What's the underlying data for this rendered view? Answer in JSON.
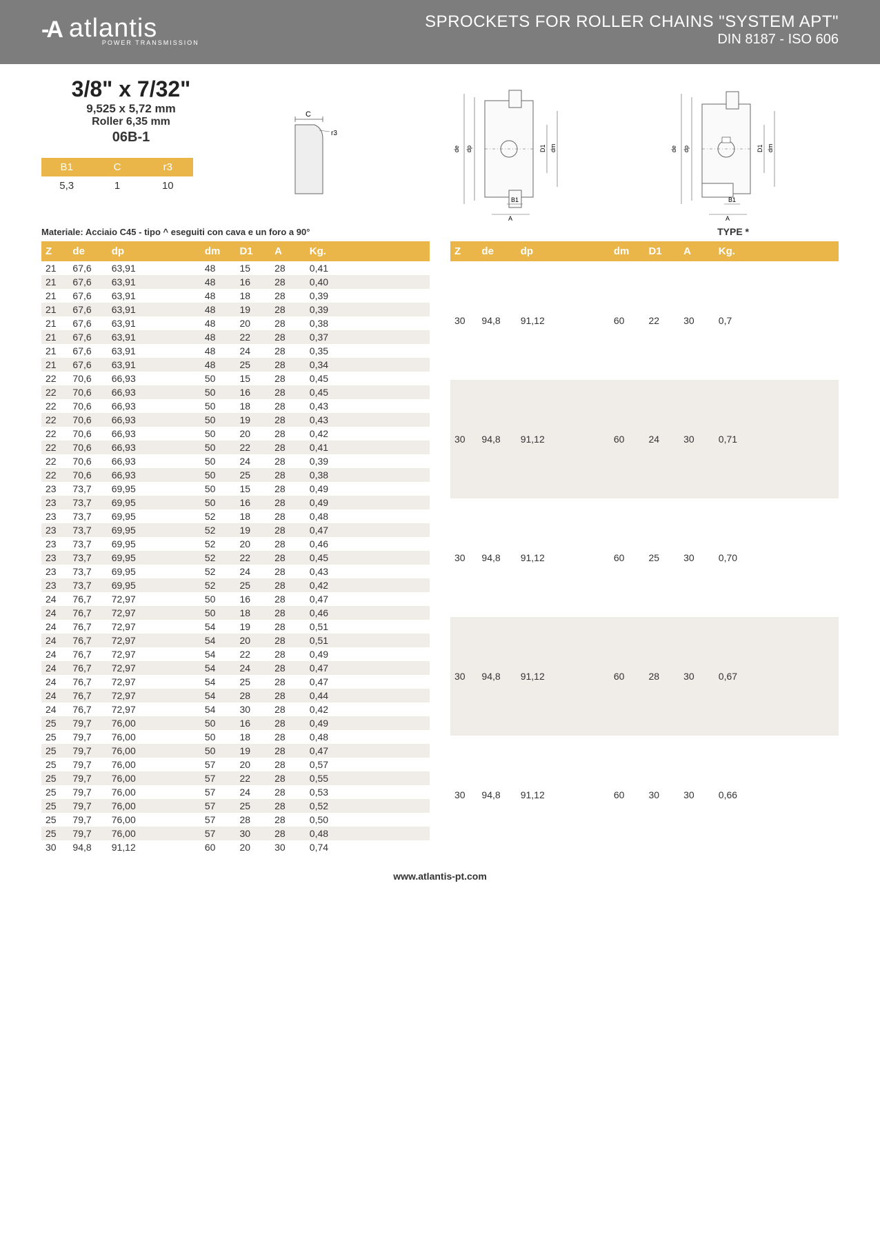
{
  "header": {
    "logo_text": "atlantis",
    "logo_sub": "POWER TRANSMISSION",
    "title": "SPROCKETS FOR ROLLER CHAINS \"SYSTEM APT\"",
    "subtitle": "DIN 8187 - ISO 606"
  },
  "spec": {
    "headline": "3/8\" x 7/32\"",
    "line1": "9,525 x 5,72 mm",
    "line2": "Roller 6,35 mm",
    "code": "06B-1"
  },
  "small_table": {
    "headers": [
      "B1",
      "C",
      "r3"
    ],
    "values": [
      "5,3",
      "1",
      "10"
    ]
  },
  "material_note": "Materiale: Acciaio C45 - tipo ^ eseguiti con cava e un foro a 90°",
  "type_label": "TYPE *",
  "table_columns": [
    "Z",
    "de",
    "dp",
    "dm",
    "D1",
    "A",
    "Kg."
  ],
  "left_rows": [
    [
      "21",
      "67,6",
      "63,91",
      "48",
      "15",
      "28",
      "0,41"
    ],
    [
      "21",
      "67,6",
      "63,91",
      "48",
      "16",
      "28",
      "0,40"
    ],
    [
      "21",
      "67,6",
      "63,91",
      "48",
      "18",
      "28",
      "0,39"
    ],
    [
      "21",
      "67,6",
      "63,91",
      "48",
      "19",
      "28",
      "0,39"
    ],
    [
      "21",
      "67,6",
      "63,91",
      "48",
      "20",
      "28",
      "0,38"
    ],
    [
      "21",
      "67,6",
      "63,91",
      "48",
      "22",
      "28",
      "0,37"
    ],
    [
      "21",
      "67,6",
      "63,91",
      "48",
      "24",
      "28",
      "0,35"
    ],
    [
      "21",
      "67,6",
      "63,91",
      "48",
      "25",
      "28",
      "0,34"
    ],
    [
      "22",
      "70,6",
      "66,93",
      "50",
      "15",
      "28",
      "0,45"
    ],
    [
      "22",
      "70,6",
      "66,93",
      "50",
      "16",
      "28",
      "0,45"
    ],
    [
      "22",
      "70,6",
      "66,93",
      "50",
      "18",
      "28",
      "0,43"
    ],
    [
      "22",
      "70,6",
      "66,93",
      "50",
      "19",
      "28",
      "0,43"
    ],
    [
      "22",
      "70,6",
      "66,93",
      "50",
      "20",
      "28",
      "0,42"
    ],
    [
      "22",
      "70,6",
      "66,93",
      "50",
      "22",
      "28",
      "0,41"
    ],
    [
      "22",
      "70,6",
      "66,93",
      "50",
      "24",
      "28",
      "0,39"
    ],
    [
      "22",
      "70,6",
      "66,93",
      "50",
      "25",
      "28",
      "0,38"
    ],
    [
      "23",
      "73,7",
      "69,95",
      "50",
      "15",
      "28",
      "0,49"
    ],
    [
      "23",
      "73,7",
      "69,95",
      "50",
      "16",
      "28",
      "0,49"
    ],
    [
      "23",
      "73,7",
      "69,95",
      "52",
      "18",
      "28",
      "0,48"
    ],
    [
      "23",
      "73,7",
      "69,95",
      "52",
      "19",
      "28",
      "0,47"
    ],
    [
      "23",
      "73,7",
      "69,95",
      "52",
      "20",
      "28",
      "0,46"
    ],
    [
      "23",
      "73,7",
      "69,95",
      "52",
      "22",
      "28",
      "0,45"
    ],
    [
      "23",
      "73,7",
      "69,95",
      "52",
      "24",
      "28",
      "0,43"
    ],
    [
      "23",
      "73,7",
      "69,95",
      "52",
      "25",
      "28",
      "0,42"
    ],
    [
      "24",
      "76,7",
      "72,97",
      "50",
      "16",
      "28",
      "0,47"
    ],
    [
      "24",
      "76,7",
      "72,97",
      "50",
      "18",
      "28",
      "0,46"
    ],
    [
      "24",
      "76,7",
      "72,97",
      "54",
      "19",
      "28",
      "0,51"
    ],
    [
      "24",
      "76,7",
      "72,97",
      "54",
      "20",
      "28",
      "0,51"
    ],
    [
      "24",
      "76,7",
      "72,97",
      "54",
      "22",
      "28",
      "0,49"
    ],
    [
      "24",
      "76,7",
      "72,97",
      "54",
      "24",
      "28",
      "0,47"
    ],
    [
      "24",
      "76,7",
      "72,97",
      "54",
      "25",
      "28",
      "0,47"
    ],
    [
      "24",
      "76,7",
      "72,97",
      "54",
      "28",
      "28",
      "0,44"
    ],
    [
      "24",
      "76,7",
      "72,97",
      "54",
      "30",
      "28",
      "0,42"
    ],
    [
      "25",
      "79,7",
      "76,00",
      "50",
      "16",
      "28",
      "0,49"
    ],
    [
      "25",
      "79,7",
      "76,00",
      "50",
      "18",
      "28",
      "0,48"
    ],
    [
      "25",
      "79,7",
      "76,00",
      "50",
      "19",
      "28",
      "0,47"
    ],
    [
      "25",
      "79,7",
      "76,00",
      "57",
      "20",
      "28",
      "0,57"
    ],
    [
      "25",
      "79,7",
      "76,00",
      "57",
      "22",
      "28",
      "0,55"
    ],
    [
      "25",
      "79,7",
      "76,00",
      "57",
      "24",
      "28",
      "0,53"
    ],
    [
      "25",
      "79,7",
      "76,00",
      "57",
      "25",
      "28",
      "0,52"
    ],
    [
      "25",
      "79,7",
      "76,00",
      "57",
      "28",
      "28",
      "0,50"
    ],
    [
      "25",
      "79,7",
      "76,00",
      "57",
      "30",
      "28",
      "0,48"
    ],
    [
      "30",
      "94,8",
      "91,12",
      "60",
      "20",
      "30",
      "0,74"
    ]
  ],
  "right_rows": [
    [
      "30",
      "94,8",
      "91,12",
      "60",
      "22",
      "30",
      "0,7"
    ],
    [
      "30",
      "94,8",
      "91,12",
      "60",
      "24",
      "30",
      "0,71"
    ],
    [
      "30",
      "94,8",
      "91,12",
      "60",
      "25",
      "30",
      "0,70"
    ],
    [
      "30",
      "94,8",
      "91,12",
      "60",
      "28",
      "30",
      "0,67"
    ],
    [
      "30",
      "94,8",
      "91,12",
      "60",
      "30",
      "30",
      "0,66"
    ]
  ],
  "footer_url": "www.atlantis-pt.com",
  "colors": {
    "header_bg": "#7d7d7d",
    "accent": "#eab64a",
    "stripe": "#f0ede9"
  }
}
